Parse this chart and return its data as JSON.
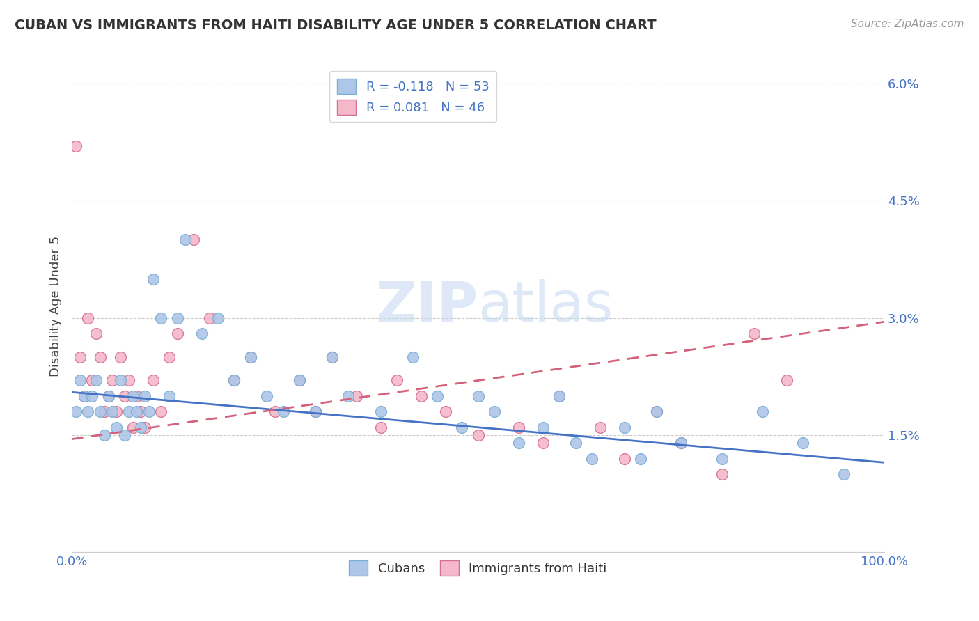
{
  "title": "CUBAN VS IMMIGRANTS FROM HAITI DISABILITY AGE UNDER 5 CORRELATION CHART",
  "source": "Source: ZipAtlas.com",
  "ylabel": "Disability Age Under 5",
  "legend_cubans": "Cubans",
  "legend_haiti": "Immigrants from Haiti",
  "r_cubans": -0.118,
  "n_cubans": 53,
  "r_haiti": 0.081,
  "n_haiti": 46,
  "xlim": [
    0.0,
    1.0
  ],
  "ylim": [
    0.0,
    0.063
  ],
  "cubans_color": "#aec6e8",
  "cubans_edge": "#7aafd4",
  "haiti_color": "#f4b8ca",
  "haiti_edge": "#d47090",
  "line_cubans_color": "#4472c4",
  "line_haiti_color": "#d4607a",
  "background_color": "#ffffff",
  "cubans_x": [
    0.005,
    0.01,
    0.015,
    0.02,
    0.025,
    0.03,
    0.035,
    0.04,
    0.045,
    0.05,
    0.055,
    0.06,
    0.065,
    0.07,
    0.075,
    0.08,
    0.085,
    0.09,
    0.095,
    0.1,
    0.11,
    0.12,
    0.13,
    0.14,
    0.16,
    0.18,
    0.2,
    0.22,
    0.24,
    0.26,
    0.28,
    0.3,
    0.32,
    0.34,
    0.38,
    0.42,
    0.45,
    0.48,
    0.5,
    0.52,
    0.55,
    0.58,
    0.6,
    0.62,
    0.64,
    0.68,
    0.7,
    0.72,
    0.75,
    0.8,
    0.85,
    0.9,
    0.95
  ],
  "cubans_y": [
    0.018,
    0.022,
    0.02,
    0.018,
    0.02,
    0.022,
    0.018,
    0.015,
    0.02,
    0.018,
    0.016,
    0.022,
    0.015,
    0.018,
    0.02,
    0.018,
    0.016,
    0.02,
    0.018,
    0.035,
    0.03,
    0.02,
    0.03,
    0.04,
    0.028,
    0.03,
    0.022,
    0.025,
    0.02,
    0.018,
    0.022,
    0.018,
    0.025,
    0.02,
    0.018,
    0.025,
    0.02,
    0.016,
    0.02,
    0.018,
    0.014,
    0.016,
    0.02,
    0.014,
    0.012,
    0.016,
    0.012,
    0.018,
    0.014,
    0.012,
    0.018,
    0.014,
    0.01
  ],
  "haiti_x": [
    0.005,
    0.01,
    0.015,
    0.02,
    0.025,
    0.03,
    0.035,
    0.04,
    0.045,
    0.05,
    0.055,
    0.06,
    0.065,
    0.07,
    0.075,
    0.08,
    0.085,
    0.09,
    0.1,
    0.11,
    0.12,
    0.13,
    0.15,
    0.17,
    0.2,
    0.22,
    0.25,
    0.28,
    0.3,
    0.32,
    0.35,
    0.38,
    0.4,
    0.43,
    0.46,
    0.5,
    0.55,
    0.58,
    0.6,
    0.65,
    0.68,
    0.72,
    0.75,
    0.8,
    0.84,
    0.88
  ],
  "haiti_y": [
    0.052,
    0.025,
    0.02,
    0.03,
    0.022,
    0.028,
    0.025,
    0.018,
    0.02,
    0.022,
    0.018,
    0.025,
    0.02,
    0.022,
    0.016,
    0.02,
    0.018,
    0.016,
    0.022,
    0.018,
    0.025,
    0.028,
    0.04,
    0.03,
    0.022,
    0.025,
    0.018,
    0.022,
    0.018,
    0.025,
    0.02,
    0.016,
    0.022,
    0.02,
    0.018,
    0.015,
    0.016,
    0.014,
    0.02,
    0.016,
    0.012,
    0.018,
    0.014,
    0.01,
    0.028,
    0.022
  ],
  "cubans_line_x0": 0.0,
  "cubans_line_y0": 0.0205,
  "cubans_line_x1": 1.0,
  "cubans_line_y1": 0.0115,
  "haiti_line_x0": 0.0,
  "haiti_line_y0": 0.0145,
  "haiti_line_x1": 1.0,
  "haiti_line_y1": 0.0295
}
